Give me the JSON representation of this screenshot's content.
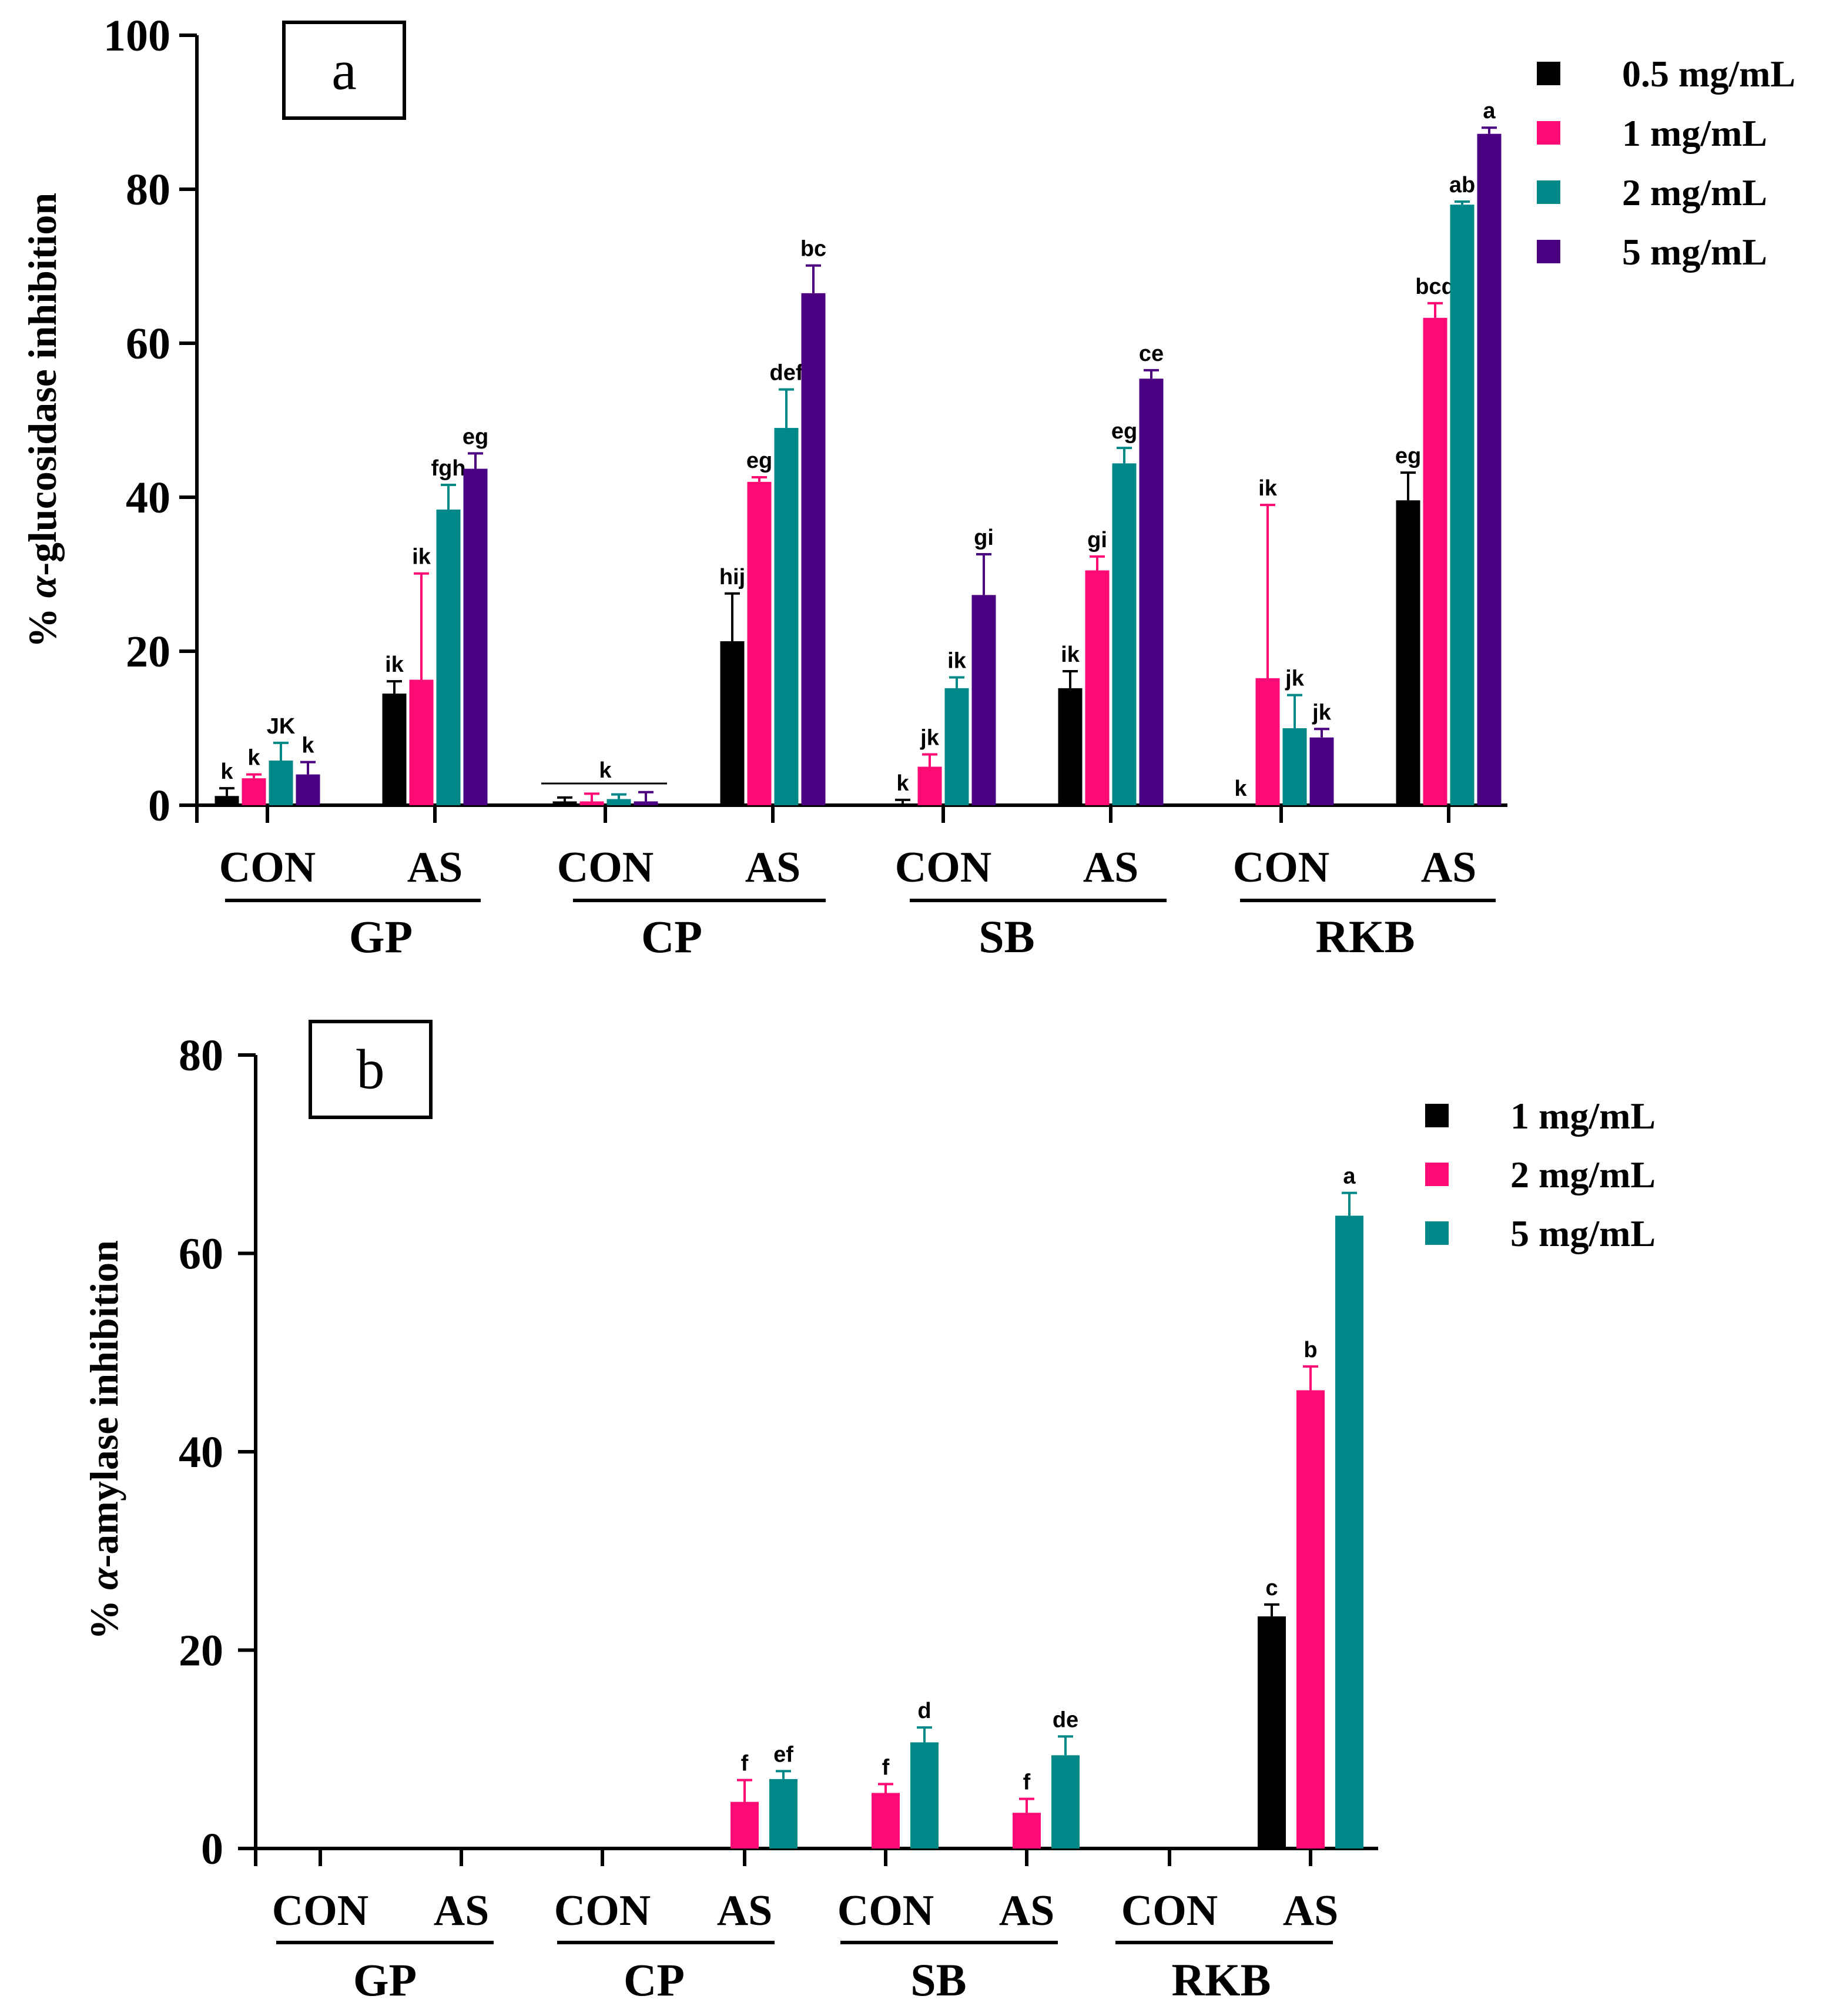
{
  "colors": {
    "black": "#000000",
    "pink": "#ff0a74",
    "teal": "#008787",
    "purple": "#4b0082"
  },
  "chart_data": [
    {
      "type": "bar",
      "panel_label": "a",
      "ylabel": "% α-glucosidase inhibition",
      "ylabel_prefix": "% ",
      "ylabel_greek": "α",
      "ylabel_rest": "-glucosidase inhibition",
      "ylim": [
        0,
        100
      ],
      "yticks": [
        "0",
        "20",
        "40",
        "60",
        "80",
        "100"
      ],
      "legend_position": "top-right",
      "categories": [
        "CON",
        "AS",
        "CON",
        "AS",
        "CON",
        "AS",
        "CON",
        "AS"
      ],
      "groups": [
        "GP",
        "CP",
        "SB",
        "RKB"
      ],
      "series": [
        {
          "name": "0.5 mg/mL",
          "color": "#000000",
          "values": [
            1.2,
            14.5,
            0.5,
            21.3,
            0.2,
            15.2,
            0.0,
            39.6
          ],
          "errors": [
            1.0,
            1.6,
            0.5,
            6.2,
            0.5,
            2.2,
            0.0,
            3.6
          ]
        },
        {
          "name": "1 mg/mL",
          "color": "#ff0a74",
          "values": [
            3.5,
            16.3,
            0.5,
            42.0,
            5.0,
            30.5,
            16.5,
            63.3
          ],
          "errors": [
            0.5,
            13.8,
            1.0,
            0.6,
            1.6,
            1.8,
            22.5,
            1.9
          ]
        },
        {
          "name": "2 mg/mL",
          "color": "#008787",
          "values": [
            5.8,
            38.4,
            0.8,
            49.0,
            15.2,
            44.4,
            10.0,
            78.0
          ],
          "errors": [
            2.3,
            3.2,
            0.6,
            5.0,
            1.4,
            2.0,
            4.3,
            0.4
          ]
        },
        {
          "name": "5 mg/mL",
          "color": "#4b0082",
          "values": [
            4.0,
            43.7,
            0.5,
            66.5,
            27.3,
            55.4,
            8.8,
            87.2
          ],
          "errors": [
            1.6,
            2.0,
            1.2,
            3.6,
            5.3,
            1.1,
            1.1,
            0.8
          ]
        }
      ],
      "letters": [
        [
          "k",
          "ik",
          "",
          "hij",
          "k",
          "ik",
          "k",
          "eg"
        ],
        [
          "k",
          "ik",
          "",
          "eg",
          "jk",
          "gi",
          "ik",
          "bcd"
        ],
        [
          "JK",
          "fgh",
          "",
          "def",
          "ik",
          "eg",
          "jk",
          "ab"
        ],
        [
          "k",
          "eg",
          "",
          "bc",
          "gi",
          "ce",
          "jk",
          "a"
        ]
      ],
      "bracket_letter": "k"
    },
    {
      "type": "bar",
      "panel_label": "b",
      "ylabel": "% α-amylase inhibition",
      "ylabel_prefix": "% ",
      "ylabel_greek": "α",
      "ylabel_rest": "-amylase inhibition",
      "ylim": [
        0,
        80
      ],
      "yticks": [
        "0",
        "20",
        "40",
        "60",
        "80"
      ],
      "legend_position": "top-right",
      "categories": [
        "CON",
        "AS",
        "CON",
        "AS",
        "CON",
        "AS",
        "CON",
        "AS"
      ],
      "groups": [
        "GP",
        "CP",
        "SB",
        "RKB"
      ],
      "series": [
        {
          "name": "1 mg/mL",
          "color": "#000000",
          "values": [
            0,
            0,
            0,
            0,
            0,
            0,
            0,
            23.4
          ],
          "errors": [
            0,
            0,
            0,
            0,
            0,
            0,
            0,
            1.2
          ]
        },
        {
          "name": "2 mg/mL",
          "color": "#ff0a74",
          "values": [
            0,
            0,
            0,
            4.7,
            5.6,
            3.6,
            0,
            46.2
          ],
          "errors": [
            0,
            0,
            0,
            2.2,
            0.9,
            1.4,
            0,
            2.4
          ]
        },
        {
          "name": "5 mg/mL",
          "color": "#008787",
          "values": [
            0,
            0,
            0,
            7.0,
            10.7,
            9.4,
            0,
            63.8
          ],
          "errors": [
            0,
            0,
            0,
            0.8,
            1.5,
            1.9,
            0,
            2.3
          ]
        }
      ],
      "letters": [
        [
          "",
          "",
          "",
          "",
          "",
          "",
          "",
          "c"
        ],
        [
          "",
          "",
          "",
          "f",
          "f",
          "f",
          "",
          "b"
        ],
        [
          "",
          "",
          "",
          "ef",
          "d",
          "de",
          "",
          "a"
        ]
      ]
    }
  ]
}
